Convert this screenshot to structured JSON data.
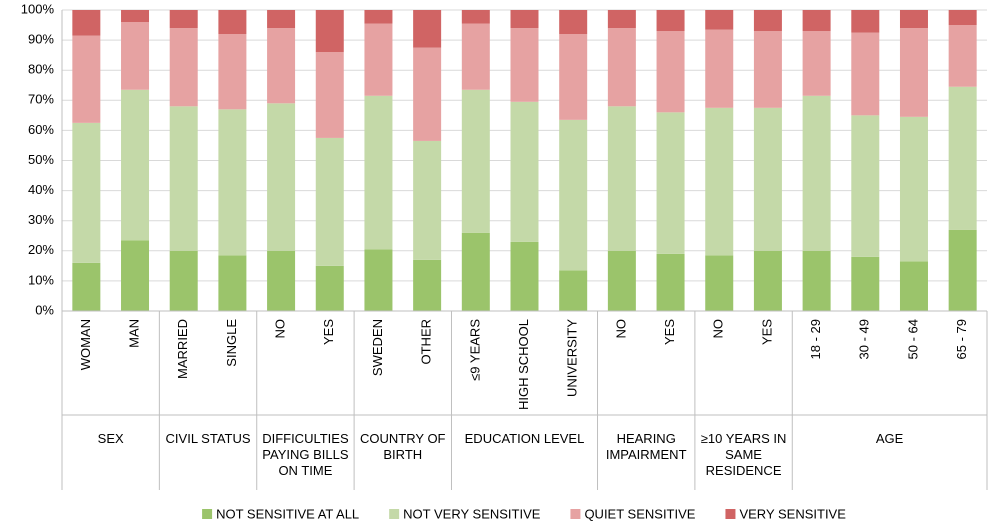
{
  "chart_data": {
    "type": "stacked_bar",
    "groups": [
      {
        "name": "SEX",
        "categories": [
          "WOMAN",
          "MAN"
        ]
      },
      {
        "name": "CIVIL STATUS",
        "categories": [
          "MARRIED",
          "SINGLE"
        ]
      },
      {
        "name": "DIFFICULTIES PAYING BILLS ON TIME",
        "categories": [
          "NO",
          "YES"
        ]
      },
      {
        "name": "COUNTRY OF BIRTH",
        "categories": [
          "SWEDEN",
          "OTHER"
        ]
      },
      {
        "name": "EDUCATION LEVEL",
        "categories": [
          "≤9 YEARS",
          "HIGH SCHOOL",
          "UNIVERSITY"
        ]
      },
      {
        "name": "HEARING IMPAIRMENT",
        "categories": [
          "NO",
          "YES"
        ]
      },
      {
        "name": "≥10 YEARS IN SAME RESIDENCE",
        "categories": [
          "NO",
          "YES"
        ]
      },
      {
        "name": "AGE",
        "categories": [
          "18 - 29",
          "30 - 49",
          "50 - 64",
          "65 - 79"
        ]
      }
    ],
    "series": [
      {
        "name": "NOT SENSITIVE AT ALL",
        "color": "#9bc46b",
        "values": [
          16,
          23.5,
          20,
          18.5,
          20,
          15,
          20.5,
          17,
          26,
          23,
          13.5,
          20,
          19,
          18.5,
          20,
          20,
          18,
          16.5,
          27
        ]
      },
      {
        "name": "NOT VERY SENSITIVE",
        "color": "#c4d9a8",
        "values": [
          46.5,
          50,
          48,
          48.5,
          49,
          42.5,
          51,
          39.5,
          47.5,
          46.5,
          50,
          48,
          47,
          49,
          47.5,
          51.5,
          47,
          48,
          47.5
        ]
      },
      {
        "name": "QUIET SENSITIVE",
        "color": "#e6a2a2",
        "values": [
          29,
          22.5,
          26,
          25,
          25,
          28.5,
          24,
          31,
          22,
          24.5,
          28.5,
          26,
          27,
          26,
          25.5,
          21.5,
          27.5,
          29.5,
          20.5
        ]
      },
      {
        "name": "VERY SENSITIVE",
        "color": "#d06464",
        "values": [
          8.5,
          4,
          6,
          8,
          6,
          14,
          4.5,
          12.5,
          4.5,
          6,
          8,
          6,
          7,
          6.5,
          7,
          7,
          7.5,
          6,
          5
        ]
      }
    ],
    "ylim": [
      0,
      100
    ],
    "yticks": [
      {
        "value": 0,
        "label": "0%"
      },
      {
        "value": 10,
        "label": "10%"
      },
      {
        "value": 20,
        "label": "20%"
      },
      {
        "value": 30,
        "label": "30%"
      },
      {
        "value": 40,
        "label": "40%"
      },
      {
        "value": 50,
        "label": "50%"
      },
      {
        "value": 60,
        "label": "60%"
      },
      {
        "value": 70,
        "label": "70%"
      },
      {
        "value": 80,
        "label": "80%"
      },
      {
        "value": 90,
        "label": "90%"
      },
      {
        "value": 100,
        "label": "100%"
      }
    ],
    "grid": true,
    "legend": "bottom"
  }
}
